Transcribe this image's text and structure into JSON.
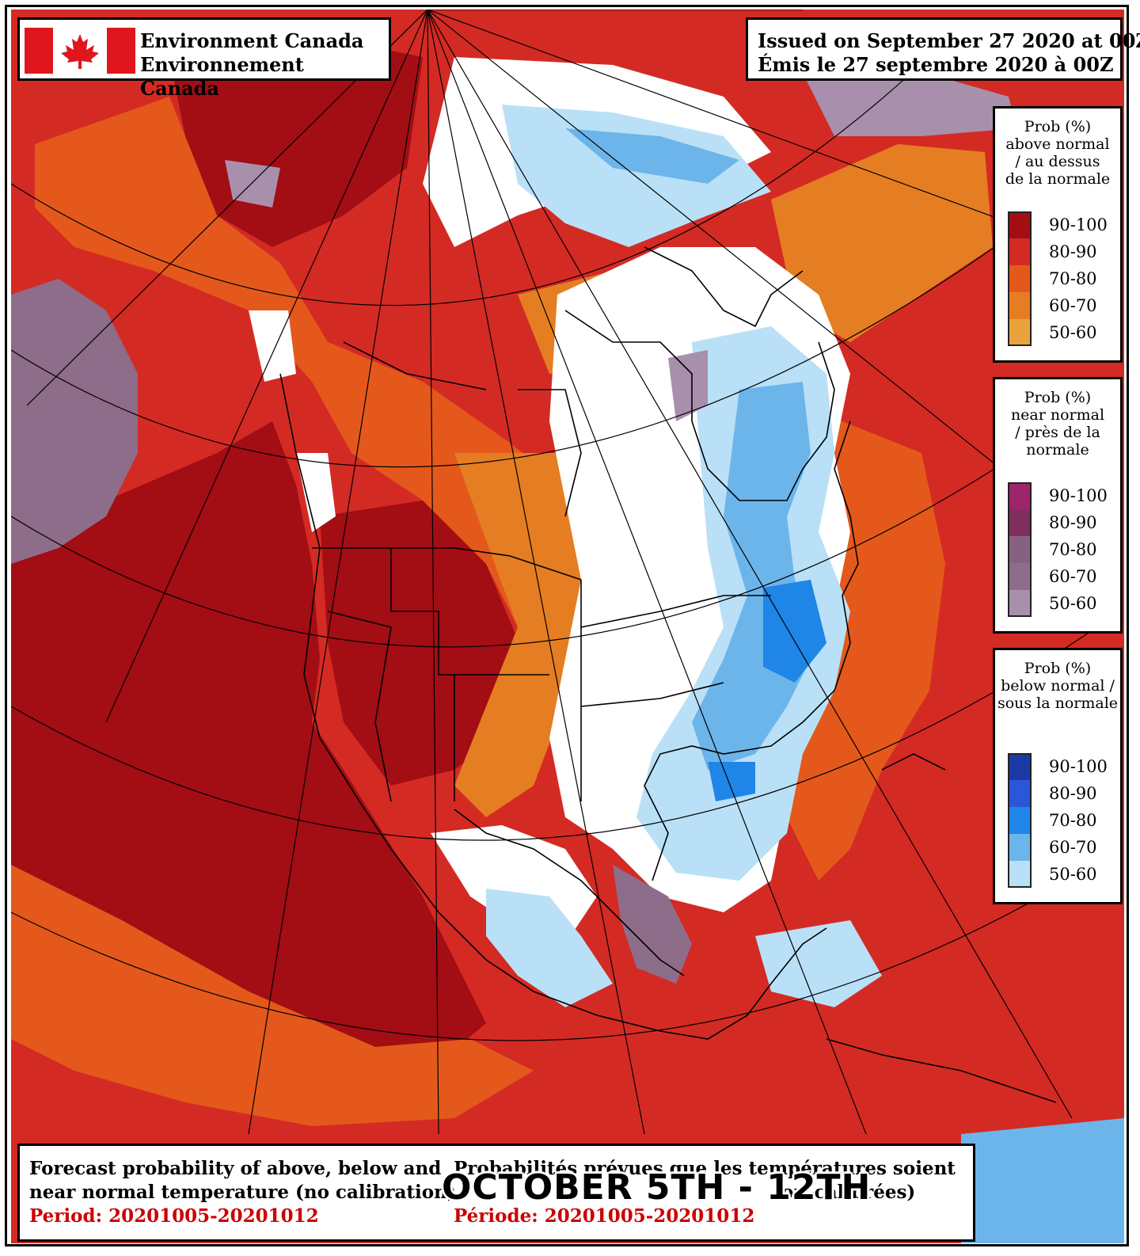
{
  "header": {
    "agency_en": "Environment Canada",
    "agency_fr": "Environnement Canada",
    "issued_en": "Issued on September 27 2020 at 00Z",
    "issued_fr": "Émis le 27 septembre 2020 à 00Z"
  },
  "legends": {
    "above": {
      "title": [
        "Prob (%)",
        "above normal",
        "/ au dessus",
        "de la normale"
      ],
      "ranges": [
        "90-100",
        "80-90",
        "70-80",
        "60-70",
        "50-60"
      ],
      "colors": [
        "#a30d14",
        "#d42a24",
        "#e4591b",
        "#e57e22",
        "#eaa23c"
      ]
    },
    "near": {
      "title": [
        "Prob (%)",
        "near normal",
        "/ près de la",
        "normale"
      ],
      "ranges": [
        "90-100",
        "80-90",
        "70-80",
        "60-70",
        "50-60"
      ],
      "colors": [
        "#a0246a",
        "#7e2f5e",
        "#876182",
        "#8d6d8a",
        "#a890ac"
      ]
    },
    "below": {
      "title": [
        "Prob (%)",
        "below normal /",
        "sous la normale"
      ],
      "ranges": [
        "90-100",
        "80-90",
        "70-80",
        "60-70",
        "50-60"
      ],
      "colors": [
        "#1c3aa6",
        "#2a56d8",
        "#1f86e8",
        "#6cb5eb",
        "#b9e0f7"
      ]
    },
    "map_colors": {
      "above_strong": "#a30d14",
      "above_high": "#d42a24",
      "above_mid": "#e4591b",
      "above_low": "#e57e22",
      "above_min": "#eaa23c",
      "below_min": "#b9e0f7",
      "below_low": "#6cb5eb",
      "below_mid": "#1f86e8",
      "near_min": "#a890ac",
      "near_low": "#8d6d8a"
    }
  },
  "caption": {
    "en_line1": "Forecast probability of above, below and",
    "en_line2": "near normal temperature (no calibration)",
    "en_period": "Period: 20201005-20201012",
    "fr_line1": "Probabilités prévues que les températures soient",
    "fr_line2": "on-calibrées)",
    "fr_period": "Période: 20201005-20201012"
  },
  "overlay_title": "OCTOBER 5TH - 12TH"
}
